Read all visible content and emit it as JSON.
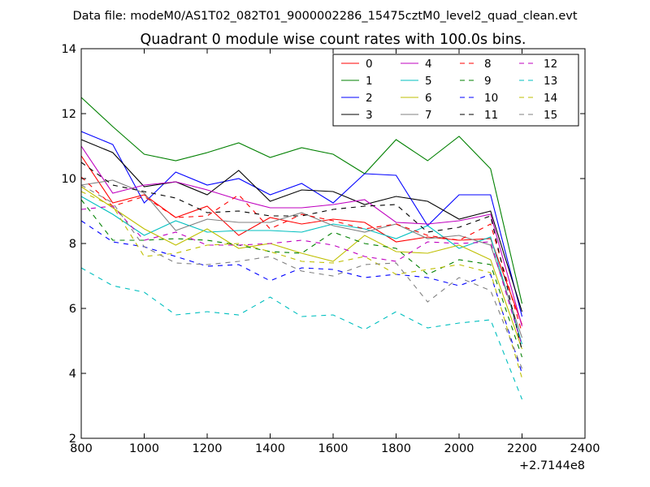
{
  "chart_data": {
    "type": "line",
    "suptitle": "Data file: modeM0/AS1T02_082T01_9000002286_15475cztM0_level2_quad_clean.evt",
    "title": "Quadrant 0 module wise count rates with 100.0s bins.",
    "xlabel": "",
    "ylabel": "",
    "x_offset_label": "+2.7144e8",
    "xlim": [
      800,
      2400
    ],
    "ylim": [
      2,
      14
    ],
    "xticks": [
      800,
      1000,
      1200,
      1400,
      1600,
      1800,
      2000,
      2200,
      2400
    ],
    "yticks": [
      2,
      4,
      6,
      8,
      10,
      12,
      14
    ],
    "grid": false,
    "legend_position": "top-right",
    "x": [
      800,
      900,
      1000,
      1100,
      1200,
      1300,
      1400,
      1500,
      1600,
      1700,
      1800,
      1900,
      2000,
      2100,
      2200
    ],
    "series": [
      {
        "name": "0",
        "color": "#ff0000",
        "dash": "solid",
        "values": [
          10.7,
          9.25,
          9.5,
          8.8,
          9.15,
          8.25,
          8.8,
          8.6,
          8.75,
          8.65,
          8.05,
          8.2,
          8.1,
          8.15,
          5.5
        ]
      },
      {
        "name": "1",
        "color": "#008000",
        "dash": "solid",
        "values": [
          12.5,
          11.6,
          10.75,
          10.55,
          10.8,
          11.1,
          10.65,
          10.95,
          10.75,
          10.15,
          11.2,
          10.55,
          11.3,
          10.3,
          6.15
        ]
      },
      {
        "name": "2",
        "color": "#0000ff",
        "dash": "solid",
        "values": [
          11.45,
          11.05,
          9.25,
          10.2,
          9.8,
          10.0,
          9.5,
          9.85,
          9.25,
          10.15,
          10.1,
          8.55,
          9.5,
          9.5,
          5.75
        ]
      },
      {
        "name": "3",
        "color": "#000000",
        "dash": "solid",
        "values": [
          11.2,
          10.8,
          9.75,
          9.9,
          9.5,
          10.25,
          9.3,
          9.65,
          9.6,
          9.2,
          9.45,
          9.3,
          8.75,
          9.0,
          5.9
        ]
      },
      {
        "name": "4",
        "color": "#bf00bf",
        "dash": "solid",
        "values": [
          11.0,
          9.55,
          9.8,
          9.9,
          9.65,
          9.35,
          9.1,
          9.1,
          9.2,
          9.35,
          8.65,
          8.6,
          8.7,
          8.9,
          5.45
        ]
      },
      {
        "name": "5",
        "color": "#00bfbf",
        "dash": "solid",
        "values": [
          9.45,
          8.9,
          8.25,
          8.7,
          8.35,
          8.4,
          8.4,
          8.35,
          8.6,
          8.45,
          8.15,
          8.55,
          7.85,
          8.2,
          4.9
        ]
      },
      {
        "name": "6",
        "color": "#bfbf00",
        "dash": "solid",
        "values": [
          9.75,
          9.1,
          8.45,
          7.95,
          8.45,
          7.85,
          8.0,
          7.7,
          7.45,
          8.25,
          7.75,
          7.7,
          7.95,
          7.5,
          4.75
        ]
      },
      {
        "name": "7",
        "color": "#808080",
        "dash": "solid",
        "values": [
          9.8,
          9.95,
          9.55,
          8.4,
          8.75,
          8.65,
          8.65,
          8.95,
          8.55,
          8.35,
          8.6,
          8.15,
          8.25,
          7.95,
          5.1
        ]
      },
      {
        "name": "8",
        "color": "#ff0000",
        "dash": "dashed",
        "values": [
          10.05,
          9.15,
          9.45,
          8.8,
          8.85,
          9.5,
          8.45,
          8.9,
          8.7,
          8.45,
          8.6,
          8.25,
          8.1,
          8.6,
          5.25
        ]
      },
      {
        "name": "9",
        "color": "#008000",
        "dash": "dashed",
        "values": [
          9.35,
          8.1,
          8.1,
          8.15,
          8.1,
          7.95,
          7.75,
          7.7,
          8.35,
          8.0,
          7.85,
          7.05,
          7.5,
          7.35,
          4.5
        ]
      },
      {
        "name": "10",
        "color": "#0000ff",
        "dash": "dashed",
        "values": [
          8.7,
          8.05,
          7.9,
          7.6,
          7.3,
          7.35,
          6.85,
          7.25,
          7.2,
          6.95,
          7.05,
          6.95,
          6.7,
          7.05,
          4.0
        ]
      },
      {
        "name": "11",
        "color": "#000000",
        "dash": "dashed",
        "values": [
          10.5,
          9.8,
          9.6,
          9.4,
          8.95,
          9.0,
          8.85,
          8.85,
          9.05,
          9.15,
          9.2,
          8.35,
          8.5,
          8.85,
          4.7
        ]
      },
      {
        "name": "12",
        "color": "#bf00bf",
        "dash": "dashed",
        "values": [
          9.05,
          9.15,
          8.1,
          8.35,
          7.95,
          7.95,
          8.0,
          8.1,
          7.95,
          7.6,
          7.45,
          8.05,
          8.0,
          8.05,
          4.85
        ]
      },
      {
        "name": "13",
        "color": "#00bfbf",
        "dash": "dashed",
        "values": [
          7.25,
          6.7,
          6.5,
          5.8,
          5.9,
          5.8,
          6.35,
          5.75,
          5.8,
          5.35,
          5.9,
          5.4,
          5.55,
          5.65,
          3.2
        ]
      },
      {
        "name": "14",
        "color": "#bfbf00",
        "dash": "dashed",
        "values": [
          9.6,
          9.15,
          7.6,
          7.7,
          7.95,
          8.0,
          7.75,
          7.45,
          7.4,
          7.6,
          7.05,
          7.2,
          7.35,
          7.1,
          3.85
        ]
      },
      {
        "name": "15",
        "color": "#808080",
        "dash": "dashed",
        "values": [
          9.8,
          9.25,
          7.9,
          7.4,
          7.35,
          7.45,
          7.6,
          7.15,
          7.0,
          7.35,
          7.4,
          6.2,
          6.95,
          6.55,
          4.15
        ]
      }
    ]
  }
}
